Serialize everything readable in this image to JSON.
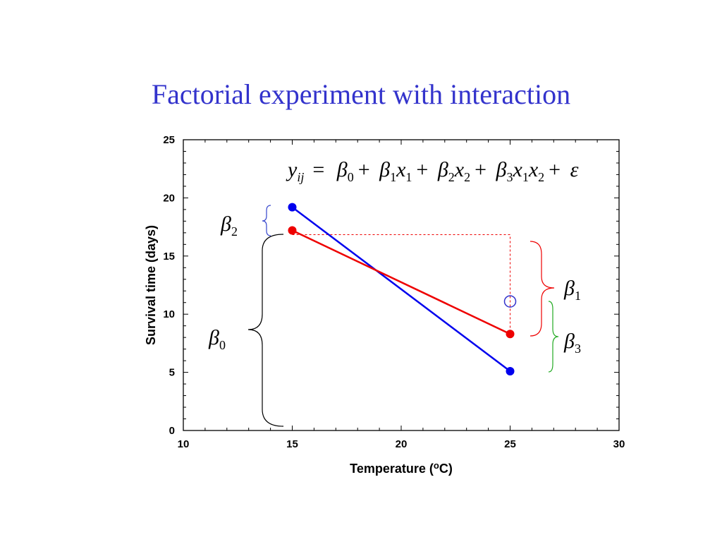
{
  "title": "Factorial experiment with interaction",
  "colors": {
    "title": "#3333cc",
    "series_a": "#0000ee",
    "series_b": "#ee0000",
    "beta3_brace": "#22aa22",
    "beta1_brace": "#ee0000",
    "beta2_brace": "#3344cc"
  },
  "equation": {
    "lhs": "y",
    "lhs_sub": "ij",
    "eq": "=",
    "terms": [
      {
        "sym": "β",
        "sub": "0",
        "factor": ""
      },
      {
        "sym": "β",
        "sub": "1",
        "factor": "x",
        "factor_sub": "1"
      },
      {
        "sym": "β",
        "sub": "2",
        "factor": "x",
        "factor_sub": "2"
      },
      {
        "sym": "β",
        "sub": "3",
        "factor": "x",
        "factor_sub": "1",
        "factor2": "x",
        "factor2_sub": "2"
      }
    ],
    "error": "ε"
  },
  "annotations": {
    "beta0": {
      "sym": "β",
      "sub": "0"
    },
    "beta1": {
      "sym": "β",
      "sub": "1"
    },
    "beta2": {
      "sym": "β",
      "sub": "2"
    },
    "beta3": {
      "sym": "β",
      "sub": "3"
    }
  },
  "chart_data": {
    "type": "line",
    "xlabel": "Temperature (",
    "xlabel_unit": "o",
    "xlabel_end": "C)",
    "ylabel": "Survival time (days)",
    "xlim": [
      10,
      30
    ],
    "ylim": [
      0,
      25
    ],
    "xticks": [
      10,
      15,
      20,
      25,
      30
    ],
    "yticks": [
      0,
      5,
      10,
      15,
      20,
      25
    ],
    "grid": false,
    "series": [
      {
        "color": "#0000ee",
        "x": [
          15,
          25
        ],
        "y": [
          19.2,
          5.1
        ]
      },
      {
        "color": "#ee0000",
        "x": [
          15,
          25
        ],
        "y": [
          17.2,
          8.3
        ]
      }
    ],
    "reference": {
      "dashed_color": "#ee0000",
      "hollow_point": {
        "x": 25,
        "y": 11.1,
        "color": "#3333cc"
      }
    }
  }
}
